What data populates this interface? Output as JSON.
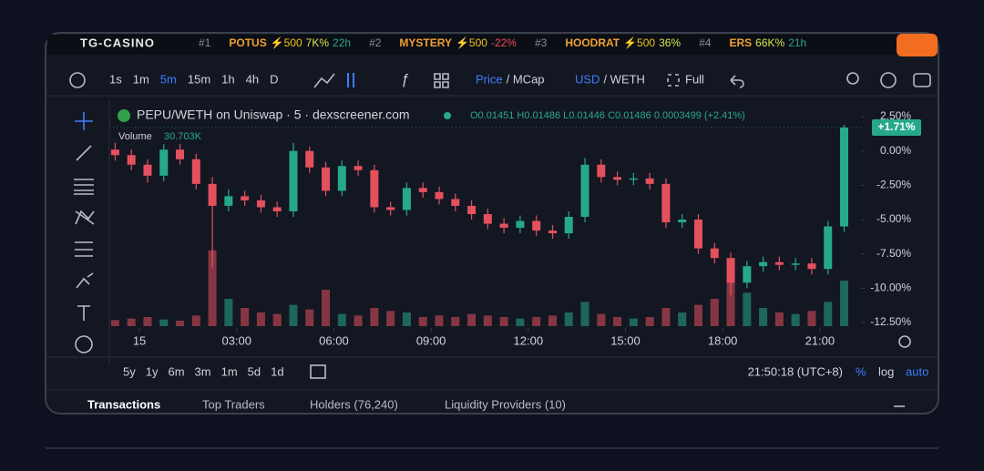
{
  "ticker": {
    "brand": "TG-CASINO",
    "items": [
      {
        "rank": "#1",
        "name": "POTUS",
        "boost": "⚡500",
        "change": "7K%",
        "age": "22h"
      },
      {
        "rank": "#2",
        "name": "MYSTERY",
        "boost": "⚡500",
        "change": "-22%"
      },
      {
        "rank": "#3",
        "name": "HOODRAT",
        "boost": "⚡500",
        "change": "36%"
      },
      {
        "rank": "#4",
        "name": "ERS",
        "change": "66K%",
        "age": "21h"
      }
    ]
  },
  "toolbar": {
    "intervals": [
      "1s",
      "1m",
      "5m",
      "15m",
      "1h",
      "4h",
      "D"
    ],
    "active_interval": "5m",
    "price": "Price",
    "mcap": "/ MCap",
    "usd": "USD",
    "weth": "/ WETH",
    "full": "Full"
  },
  "legend": {
    "pair": "PEPU/WETH on Uniswap · 5 · dexscreener.com",
    "ohlc": "O0.01451 H0.01486 L0.01446 C0.01486 0.0003499 (+2.41%)",
    "volume_label": "Volume",
    "volume_value": "30.703K"
  },
  "chart_data": {
    "type": "candlestick",
    "up_color": "#26a98a",
    "down_color": "#e5505e",
    "log_scale": false,
    "grid": false,
    "x": [
      -0.75,
      -0.25,
      0.25,
      0.75,
      1.25,
      1.75,
      2.25,
      2.75,
      3.25,
      3.75,
      4.25,
      4.75,
      5.25,
      5.75,
      6.25,
      6.75,
      7.25,
      7.75,
      8.25,
      8.75,
      9.25,
      9.75,
      10.25,
      10.75,
      11.25,
      11.75,
      12.25,
      12.75,
      13.25,
      13.75,
      14.25,
      14.75,
      15.25,
      15.75,
      16.25,
      16.75,
      17.25,
      17.75,
      18.25,
      18.75,
      19.25,
      19.75,
      20.25,
      20.75,
      21.25,
      21.75
    ],
    "open": [
      0.1,
      -0.3,
      -1.0,
      -1.8,
      0.1,
      -0.6,
      -2.4,
      -4.0,
      -3.3,
      -3.6,
      -4.1,
      -4.4,
      0.0,
      -1.2,
      -2.9,
      -1.1,
      -1.4,
      -4.1,
      -4.3,
      -2.7,
      -3.0,
      -3.5,
      -4.0,
      -4.6,
      -5.3,
      -5.6,
      -5.1,
      -5.8,
      -6.0,
      -4.8,
      -1.0,
      -1.9,
      -2.1,
      -2.0,
      -2.4,
      -5.2,
      -5.0,
      -7.1,
      -7.8,
      -9.6,
      -8.4,
      -8.1,
      -8.3,
      -8.2,
      -8.6,
      -5.5
    ],
    "high": [
      0.6,
      0.1,
      -0.6,
      0.5,
      0.5,
      -0.2,
      -1.9,
      -2.8,
      -2.9,
      -3.2,
      -3.7,
      0.6,
      0.3,
      -0.8,
      -0.7,
      -0.7,
      -1.0,
      -3.7,
      -2.3,
      -2.3,
      -2.6,
      -3.1,
      -3.6,
      -4.2,
      -4.9,
      -4.7,
      -4.7,
      -5.4,
      -4.4,
      -0.5,
      -0.6,
      -1.5,
      -1.6,
      -1.6,
      -2.0,
      -4.6,
      -4.6,
      -6.7,
      -7.4,
      -8.0,
      -7.7,
      -7.7,
      -7.8,
      -7.8,
      -5.1,
      1.9
    ],
    "low": [
      -0.7,
      -1.4,
      -2.3,
      -2.2,
      -1.0,
      -2.8,
      -8.5,
      -4.4,
      -4.0,
      -4.5,
      -4.8,
      -4.8,
      -1.6,
      -3.3,
      -3.3,
      -1.8,
      -4.5,
      -4.7,
      -4.7,
      -3.4,
      -3.9,
      -4.4,
      -5.0,
      -5.7,
      -6.0,
      -6.0,
      -6.2,
      -6.4,
      -6.4,
      -5.2,
      -2.3,
      -2.5,
      -2.5,
      -2.8,
      -5.6,
      -5.6,
      -7.5,
      -8.2,
      -10.5,
      -10.0,
      -8.8,
      -8.7,
      -8.7,
      -9.0,
      -9.0,
      -5.9
    ],
    "close": [
      -0.3,
      -1.0,
      -1.8,
      0.1,
      -0.6,
      -2.4,
      -4.0,
      -3.3,
      -3.6,
      -4.1,
      -4.4,
      0.0,
      -1.2,
      -2.9,
      -1.1,
      -1.4,
      -4.1,
      -4.3,
      -2.7,
      -3.0,
      -3.5,
      -4.0,
      -4.6,
      -5.3,
      -5.6,
      -5.1,
      -5.8,
      -6.0,
      -4.8,
      -1.0,
      -1.9,
      -2.1,
      -2.0,
      -2.4,
      -5.2,
      -5.0,
      -7.1,
      -7.8,
      -9.6,
      -8.4,
      -8.1,
      -8.3,
      -8.2,
      -8.6,
      -5.5,
      1.71
    ],
    "volume": [
      20,
      25,
      30,
      22,
      18,
      35,
      250,
      90,
      60,
      45,
      40,
      70,
      55,
      120,
      40,
      35,
      60,
      50,
      45,
      30,
      35,
      30,
      40,
      35,
      30,
      25,
      30,
      35,
      45,
      80,
      40,
      30,
      25,
      30,
      60,
      45,
      70,
      90,
      200,
      110,
      60,
      45,
      40,
      50,
      80,
      150
    ],
    "vlim": [
      0,
      300
    ],
    "current_label": "+1.71%",
    "xlim": [
      -0.93,
      22.27
    ],
    "xticks": [
      {
        "value": 0,
        "label": "15"
      },
      {
        "value": 3,
        "label": "03:00"
      },
      {
        "value": 6,
        "label": "06:00"
      },
      {
        "value": 9,
        "label": "09:00"
      },
      {
        "value": 12,
        "label": "12:00"
      },
      {
        "value": 15,
        "label": "15:00"
      },
      {
        "value": 18,
        "label": "18:00"
      },
      {
        "value": 21,
        "label": "21:00"
      }
    ],
    "ylim": [
      -12.9,
      3.7
    ],
    "yticks": [
      {
        "value": 2.5,
        "label": "2.50%"
      },
      {
        "value": 0,
        "label": "0.00%"
      },
      {
        "value": -2.5,
        "label": "-2.50%"
      },
      {
        "value": -5,
        "label": "-5.00%"
      },
      {
        "value": -7.5,
        "label": "-7.50%"
      },
      {
        "value": -10,
        "label": "-10.00%"
      },
      {
        "value": -12.5,
        "label": "-12.50%"
      }
    ]
  },
  "range_bar": {
    "ranges": [
      "5y",
      "1y",
      "6m",
      "3m",
      "1m",
      "5d",
      "1d"
    ],
    "time": "21:50:18 (UTC+8)",
    "percent": "%",
    "log": "log",
    "auto": "auto"
  },
  "tabs": [
    "Transactions",
    "Top Traders",
    "Holders (76,240)",
    "Liquidity Providers (10)"
  ]
}
